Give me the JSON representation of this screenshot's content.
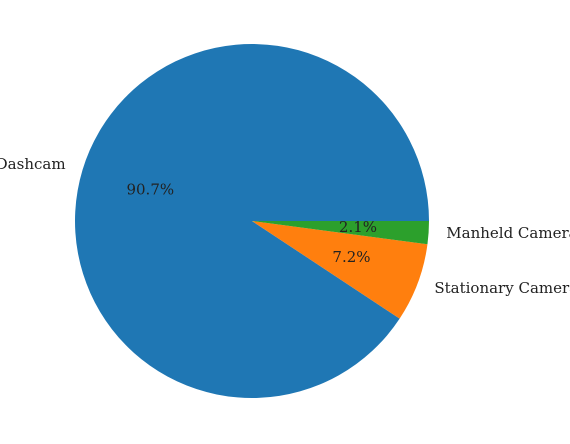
{
  "chart_data": {
    "type": "pie",
    "title": "",
    "slices": [
      {
        "label": "Dashcam",
        "value": 90.7,
        "pct_label": "90.7%",
        "color": "#1f77b4"
      },
      {
        "label": "Stationary Camera",
        "value": 7.2,
        "pct_label": "7.2%",
        "color": "#ff7f0e"
      },
      {
        "label": "Manheld Camera",
        "value": 2.1,
        "pct_label": "2.1%",
        "color": "#2ca02c"
      }
    ]
  }
}
